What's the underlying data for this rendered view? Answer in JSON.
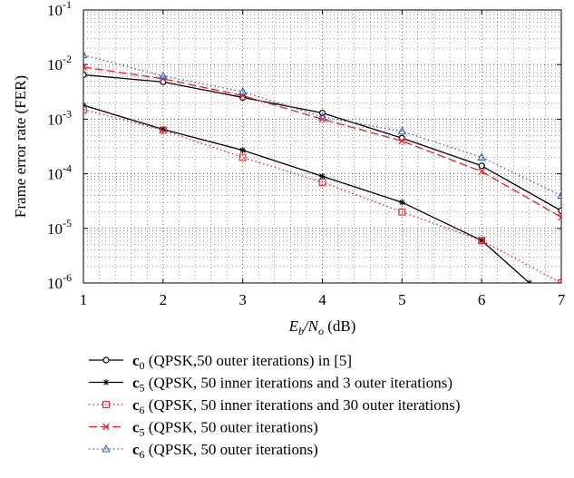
{
  "chart_data": {
    "type": "line",
    "title": "",
    "xlabel": {
      "pre": "E",
      "sub1": "b",
      "mid": "/N",
      "sub2": "o",
      "post": " (dB)"
    },
    "ylabel": "Frame error rate (FER)",
    "xlim": [
      1,
      7
    ],
    "ylim": [
      1e-06,
      0.1
    ],
    "yscale": "log",
    "grid": true,
    "x_ticks": [
      "1",
      "2",
      "3",
      "4",
      "5",
      "6",
      "7"
    ],
    "y_ticks": [
      {
        "exp": "-6",
        "value": 1e-06
      },
      {
        "exp": "-5",
        "value": 1e-05
      },
      {
        "exp": "-4",
        "value": 0.0001
      },
      {
        "exp": "-3",
        "value": 0.001
      },
      {
        "exp": "-2",
        "value": 0.01
      },
      {
        "exp": "-1",
        "value": 0.1
      }
    ],
    "legend_position": "below",
    "series": [
      {
        "sym": "c",
        "sub": "0",
        "name": " (QPSK,50 outer iterations) in [5]",
        "color": "#000000",
        "dash": "solid",
        "marker": "circle",
        "x": [
          1,
          2,
          3,
          4,
          5,
          6,
          7
        ],
        "y": [
          0.0065,
          0.0048,
          0.0025,
          0.0013,
          0.00045,
          0.00014,
          2.1e-05
        ]
      },
      {
        "sym": "c",
        "sub": "5",
        "name": " (QPSK, 50 inner iterations and 3 outer iterations)",
        "color": "#000000",
        "dash": "solid",
        "marker": "star",
        "x": [
          1,
          2,
          3,
          4,
          5,
          6,
          6.6
        ],
        "y": [
          0.0018,
          0.00065,
          0.00027,
          9e-05,
          3e-05,
          6e-06,
          1e-06
        ]
      },
      {
        "sym": "c",
        "sub": "6",
        "name": " (QPSK, 50 inner iterations and 30 outer iterations)",
        "color": "#e8202a",
        "dash": "dotted",
        "marker": "square",
        "x": [
          1,
          2,
          3,
          4,
          5,
          6,
          7
        ],
        "y": [
          0.0015,
          0.00063,
          0.0002,
          7e-05,
          2e-05,
          6e-06,
          1e-06
        ]
      },
      {
        "sym": "c",
        "sub": "5",
        "name": " (QPSK, 50 outer iterations)",
        "color": "#e8202a",
        "dash": "dashed",
        "marker": "x",
        "x": [
          1,
          2,
          3,
          4,
          5,
          6,
          7
        ],
        "y": [
          0.009,
          0.0055,
          0.0027,
          0.001,
          0.0004,
          0.00011,
          1.6e-05
        ]
      },
      {
        "sym": "c",
        "sub": "6",
        "name": " (QPSK, 50 outer iterations)",
        "color": "#3a5fb5",
        "dash": "dotted",
        "marker": "triangle",
        "x": [
          1,
          2,
          3,
          4,
          5,
          6,
          7
        ],
        "y": [
          0.015,
          0.0062,
          0.0032,
          0.0011,
          0.0006,
          0.0002,
          4e-05
        ]
      }
    ]
  }
}
